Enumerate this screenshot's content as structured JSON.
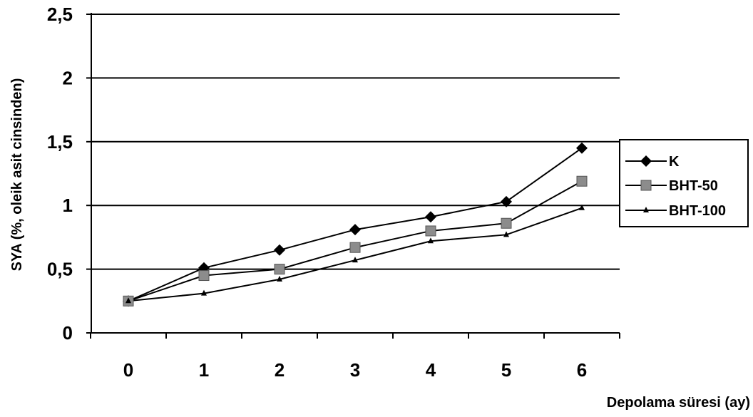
{
  "chart_data": {
    "type": "line",
    "x": [
      0,
      1,
      2,
      3,
      4,
      5,
      6
    ],
    "x_tick_labels": [
      "0",
      "1",
      "2",
      "3",
      "4",
      "5",
      "6"
    ],
    "y_tick_labels": [
      "0",
      "0,5",
      "1",
      "1,5",
      "2",
      "2,5"
    ],
    "y_ticks": [
      0,
      0.5,
      1,
      1.5,
      2,
      2.5
    ],
    "ylim": [
      0,
      2.5
    ],
    "xlabel": "Depolama süresi (ay)",
    "ylabel": "SYA (%, oleik asit cinsinden)",
    "grid": "horizontal",
    "legend_position": "right",
    "series": [
      {
        "name": "K",
        "marker": "diamond",
        "color": "#000000",
        "values": [
          0.25,
          0.51,
          0.65,
          0.81,
          0.91,
          1.03,
          1.45
        ]
      },
      {
        "name": "BHT-50",
        "marker": "square",
        "color": "#8c8c8c",
        "values": [
          0.25,
          0.45,
          0.5,
          0.67,
          0.8,
          0.86,
          1.19
        ]
      },
      {
        "name": "BHT-100",
        "marker": "triangle",
        "color": "#000000",
        "values": [
          0.25,
          0.31,
          0.42,
          0.57,
          0.72,
          0.77,
          0.98
        ]
      }
    ]
  }
}
